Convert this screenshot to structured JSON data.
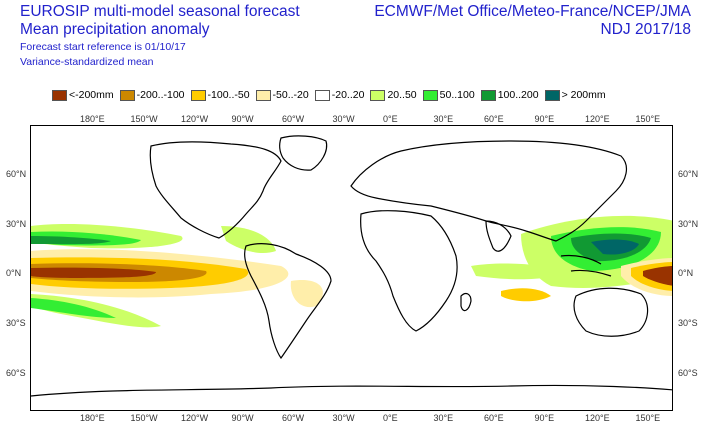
{
  "header": {
    "title_line1": "EUROSIP multi-model seasonal forecast",
    "title_line2": "Mean precipitation anomaly",
    "subtitle_line1": "Forecast start reference is 01/10/17",
    "subtitle_line2": "Variance-standardized mean",
    "source": "ECMWF/Met Office/Meteo-France/NCEP/JMA",
    "period": "NDJ 2017/18"
  },
  "legend": [
    {
      "label": "<-200mm",
      "color": "#993300"
    },
    {
      "label": "-200..-100",
      "color": "#cc8800"
    },
    {
      "label": "-100..-50",
      "color": "#ffcc00"
    },
    {
      "label": "-50..-20",
      "color": "#ffeeaa"
    },
    {
      "label": "-20..20",
      "color": "#ffffff"
    },
    {
      "label": "20..50",
      "color": "#ccff66"
    },
    {
      "label": "50..100",
      "color": "#33ee33"
    },
    {
      "label": "100..200",
      "color": "#119933"
    },
    {
      "label": "> 200mm",
      "color": "#006666"
    }
  ],
  "map": {
    "lon_labels": [
      "180°E",
      "150°W",
      "120°W",
      "90°W",
      "60°W",
      "30°W",
      "0°E",
      "30°E",
      "60°E",
      "90°E",
      "120°E",
      "150°E"
    ],
    "lat_labels": [
      "60°N",
      "30°N",
      "0°N",
      "30°S",
      "60°S"
    ]
  }
}
